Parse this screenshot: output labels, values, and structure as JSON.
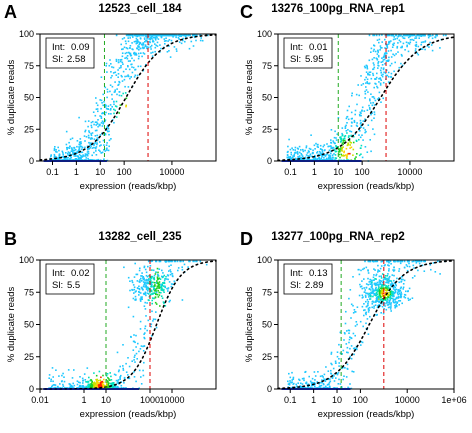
{
  "chart_data": [
    {
      "type": "scatter",
      "panel": "A",
      "title": "12523_cell_184",
      "xlabel": "expression (reads/kbp)",
      "ylabel": "% duplicate reads",
      "x_scale": "log",
      "xlim": [
        0.03,
        700000
      ],
      "ylim": [
        0,
        100
      ],
      "x_ticks": [
        0.1,
        1,
        10,
        100,
        10000
      ],
      "x_tick_labels": [
        "0.1",
        "1",
        "10",
        "100",
        "10000"
      ],
      "y_ticks": [
        0,
        25,
        50,
        75,
        100
      ],
      "y_tick_labels": [
        "0",
        "25",
        "50",
        "75",
        "100"
      ],
      "legend": {
        "position": "top-left",
        "int_label": "Int:",
        "int": "0.09",
        "sl_label": "Sl:",
        "sl": "2.58"
      },
      "green_vline_x": 15,
      "red_vline_x": 1000,
      "density": {
        "type": "sigmoid",
        "x0": 30,
        "slope": 2.2,
        "peak_x": 150,
        "peak_y": 40,
        "spread": 0.9
      }
    },
    {
      "type": "scatter",
      "panel": "C",
      "title": "13276_100pg_RNA_rep1",
      "xlabel": "expression (reads/kbp)",
      "ylabel": "% duplicate reads",
      "x_scale": "log",
      "xlim": [
        0.03,
        700000
      ],
      "ylim": [
        0,
        100
      ],
      "x_ticks": [
        0.1,
        1,
        10,
        100,
        10000
      ],
      "x_tick_labels": [
        "0.1",
        "1",
        "10",
        "100",
        "10000"
      ],
      "y_ticks": [
        0,
        25,
        50,
        75,
        100
      ],
      "y_tick_labels": [
        "0",
        "25",
        "50",
        "75",
        "100"
      ],
      "legend": {
        "position": "top-left",
        "int_label": "Int:",
        "int": "0.01",
        "sl_label": "Sl:",
        "sl": "5.95"
      },
      "green_vline_x": 10,
      "red_vline_x": 1000,
      "density": {
        "type": "sigmoid",
        "x0": 150,
        "slope": 2.0,
        "peak_x": 25,
        "peak_y": 8,
        "spread": 0.8
      }
    },
    {
      "type": "scatter",
      "panel": "B",
      "title": "13282_cell_235",
      "xlabel": "expression (reads/kbp)",
      "ylabel": "% duplicate reads",
      "x_scale": "log",
      "xlim": [
        0.01,
        1000000
      ],
      "ylim": [
        0,
        100
      ],
      "x_ticks": [
        0.01,
        1,
        10,
        1000,
        10000
      ],
      "x_tick_labels": [
        "0.01",
        "1",
        "10",
        "1000",
        "10000"
      ],
      "y_ticks": [
        0,
        25,
        50,
        75,
        100
      ],
      "y_tick_labels": [
        "0",
        "25",
        "50",
        "75",
        "100"
      ],
      "legend": {
        "position": "top-left",
        "int_label": "Int:",
        "int": "0.02",
        "sl_label": "Sl:",
        "sl": "5.5"
      },
      "green_vline_x": 10,
      "red_vline_x": 1000,
      "density": {
        "type": "cluster",
        "x0": 500,
        "slope": 3.0,
        "peak_x": 5,
        "peak_y": 2,
        "spread": 0.9
      }
    },
    {
      "type": "scatter",
      "panel": "D",
      "title": "13277_100pg_RNA_rep2",
      "xlabel": "expression (reads/kbp)",
      "ylabel": "% duplicate reads",
      "x_scale": "log",
      "xlim": [
        0.03,
        1000000
      ],
      "ylim": [
        0,
        100
      ],
      "x_ticks": [
        0.1,
        1,
        10,
        100,
        10000,
        1000000
      ],
      "x_tick_labels": [
        "0.1",
        "1",
        "10",
        "100",
        "10000",
        "1e+06"
      ],
      "y_ticks": [
        0,
        25,
        50,
        75,
        100
      ],
      "y_tick_labels": [
        "0",
        "25",
        "50",
        "75",
        "100"
      ],
      "legend": {
        "position": "top-left",
        "int_label": "Int:",
        "int": "0.13",
        "sl_label": "Sl:",
        "sl": "2.89"
      },
      "green_vline_x": 15,
      "red_vline_x": 1000,
      "density": {
        "type": "cluster2",
        "x0": 60,
        "slope": 2.3,
        "peak_x": 1000,
        "peak_y": 75,
        "spread": 0.9
      }
    }
  ],
  "colors": {
    "low": "#00bfff",
    "mid": "#00d000",
    "high": "#ffff00",
    "peak": "#ff0000",
    "green_line": "#22aa22",
    "red_line": "#dd0000",
    "fit_line": "#000000"
  }
}
